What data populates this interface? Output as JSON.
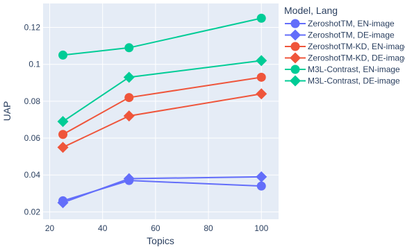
{
  "chart_data": {
    "type": "line",
    "xlabel": "Topics",
    "ylabel": "UAP",
    "xlim": [
      17.5,
      106.5
    ],
    "ylim": [
      0.016,
      0.133
    ],
    "x_ticks": [
      20,
      40,
      60,
      80,
      100
    ],
    "y_ticks": [
      0.02,
      0.04,
      0.06,
      0.08,
      0.1,
      0.12
    ],
    "x_tick_labels": [
      "20",
      "40",
      "60",
      "80",
      "100"
    ],
    "y_tick_labels": [
      "0.02",
      "0.04",
      "0.06",
      "0.08",
      "0.1",
      "0.12"
    ],
    "grid": true,
    "plot_background": "#e5ecf6",
    "legend": {
      "title": "Model, Lang",
      "placement": "right"
    },
    "x": [
      25,
      50,
      100
    ],
    "series": [
      {
        "name": "ZeroshotTM, EN-image",
        "values": [
          0.026,
          0.037,
          0.034
        ],
        "color": "#636efa",
        "marker": "circle"
      },
      {
        "name": "ZeroshotTM, DE-image",
        "values": [
          0.025,
          0.038,
          0.039
        ],
        "color": "#636efa",
        "marker": "diamond"
      },
      {
        "name": "ZeroshotTM-KD, EN-image",
        "values": [
          0.062,
          0.082,
          0.093
        ],
        "color": "#ef553b",
        "marker": "circle"
      },
      {
        "name": "ZeroshotTM-KD, DE-image",
        "values": [
          0.055,
          0.072,
          0.084
        ],
        "color": "#ef553b",
        "marker": "diamond"
      },
      {
        "name": "M3L-Contrast, EN-image",
        "values": [
          0.105,
          0.109,
          0.125
        ],
        "color": "#00cc96",
        "marker": "circle"
      },
      {
        "name": "M3L-Contrast, DE-image",
        "values": [
          0.069,
          0.093,
          0.102
        ],
        "color": "#00cc96",
        "marker": "diamond"
      }
    ]
  }
}
